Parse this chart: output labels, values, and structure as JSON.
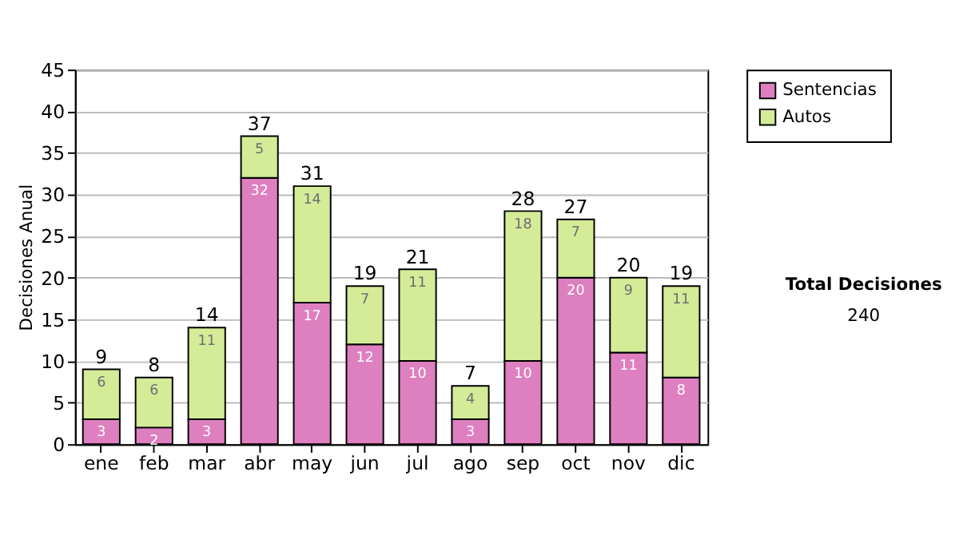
{
  "chart_data": {
    "type": "bar",
    "stacked": true,
    "ylabel": "Decisiones Anual",
    "categories": [
      "ene",
      "feb",
      "mar",
      "abr",
      "may",
      "jun",
      "jul",
      "ago",
      "sep",
      "oct",
      "nov",
      "dic"
    ],
    "series": [
      {
        "name": "Sentencias",
        "color": "#de7fc0",
        "values": [
          3,
          2,
          3,
          32,
          17,
          12,
          10,
          3,
          10,
          20,
          11,
          8
        ]
      },
      {
        "name": "Autos",
        "color": "#d4eb98",
        "values": [
          6,
          6,
          11,
          5,
          14,
          7,
          11,
          4,
          18,
          7,
          9,
          11
        ]
      }
    ],
    "data_labels": true,
    "totals": [
      "9",
      "8",
      "14",
      "37",
      "31",
      "19",
      "21",
      "7",
      "28",
      "27",
      "20",
      "19"
    ],
    "ylim": [
      0,
      45
    ],
    "yticks": [
      0,
      5,
      10,
      15,
      20,
      25,
      30,
      35,
      40,
      45
    ],
    "grid": "y",
    "legend": "right",
    "annotations": [
      "Total Decisiones",
      "240"
    ]
  }
}
